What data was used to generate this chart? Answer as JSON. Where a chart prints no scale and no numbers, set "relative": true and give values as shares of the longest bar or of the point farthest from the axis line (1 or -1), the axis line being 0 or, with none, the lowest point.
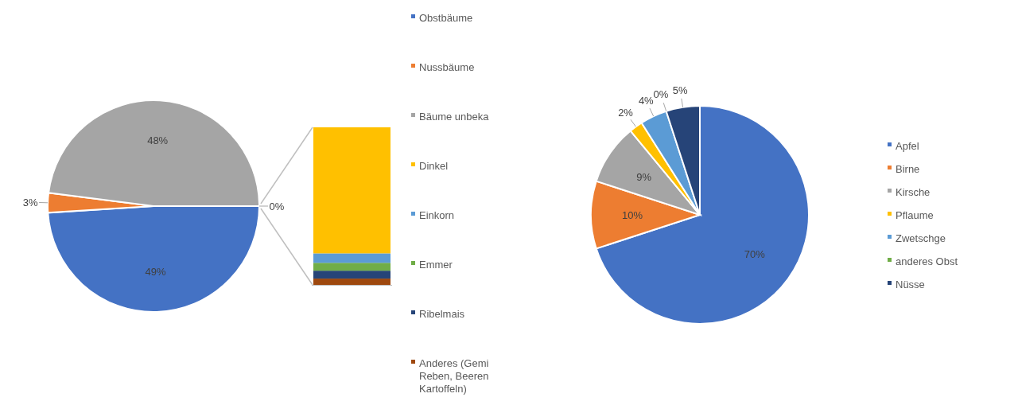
{
  "chart_data": [
    {
      "type": "pie",
      "categories": [
        "Obstbäume",
        "Nussbäume",
        "Bäume unbeka",
        null
      ],
      "values": [
        49,
        3,
        48,
        0
      ],
      "colors": [
        "#4472c4",
        "#ed7d31",
        "#a5a5a5",
        "#ffc000"
      ],
      "value_labels": [
        "49%",
        "3%",
        "48%",
        "0%"
      ],
      "legend": "right"
    },
    {
      "type": "bar",
      "stacked": true,
      "relative": true,
      "categories": [
        null
      ],
      "legend": "right",
      "series": [
        {
          "name": "Anderes (Gemi Reben, Beeren Kartoffeln)",
          "color": "#9e480e",
          "values": [
            0.04
          ]
        },
        {
          "name": "Ribelmais",
          "color": "#264478",
          "values": [
            0.05
          ]
        },
        {
          "name": "Emmer",
          "color": "#70ad47",
          "values": [
            0.05
          ]
        },
        {
          "name": "Einkorn",
          "color": "#5b9bd5",
          "values": [
            0.06
          ]
        },
        {
          "name": "Dinkel",
          "color": "#ffc000",
          "values": [
            0.8
          ]
        }
      ]
    },
    {
      "type": "pie",
      "categories": [
        "Apfel",
        "Birne",
        "Kirsche",
        "Pflaume",
        "Zwetschge",
        "anderes Obst",
        "Nüsse"
      ],
      "values": [
        70,
        10,
        9,
        2,
        4,
        0,
        5
      ],
      "colors": [
        "#4472c4",
        "#ed7d31",
        "#a5a5a5",
        "#ffc000",
        "#5b9bd5",
        "#70ad47",
        "#264478"
      ],
      "value_labels": [
        "70%",
        "10%",
        "9%",
        "2%",
        "4%",
        "0%",
        "5%"
      ],
      "legend": "right"
    }
  ]
}
